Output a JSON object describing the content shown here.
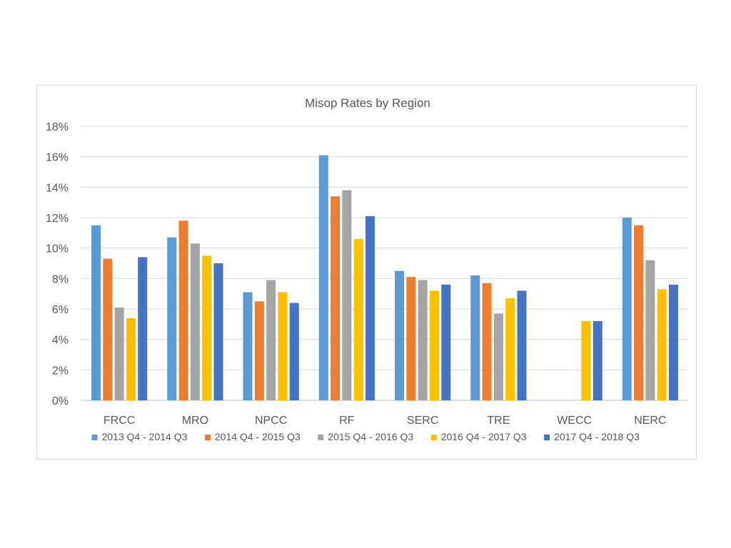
{
  "chart_data": {
    "type": "bar",
    "title": "Misop Rates by Region",
    "xlabel": "",
    "ylabel": "",
    "ylim": [
      0,
      18
    ],
    "y_ticks": [
      "0%",
      "2%",
      "4%",
      "6%",
      "8%",
      "10%",
      "12%",
      "14%",
      "16%",
      "18%"
    ],
    "grid": true,
    "legend_position": "bottom",
    "categories": [
      "FRCC",
      "MRO",
      "NPCC",
      "RF",
      "SERC",
      "TRE",
      "WECC",
      "NERC"
    ],
    "series": [
      {
        "name": "2013 Q4 - 2014 Q3",
        "color": "#5b9bd5",
        "values": [
          11.5,
          10.7,
          7.1,
          16.1,
          8.5,
          8.2,
          null,
          12.0
        ]
      },
      {
        "name": "2014 Q4 - 2015 Q3",
        "color": "#ed7d31",
        "values": [
          9.3,
          11.8,
          6.5,
          13.4,
          8.1,
          7.7,
          null,
          11.5
        ]
      },
      {
        "name": "2015 Q4 - 2016 Q3",
        "color": "#a5a5a5",
        "values": [
          6.1,
          10.3,
          7.9,
          13.8,
          7.9,
          5.7,
          null,
          9.2
        ]
      },
      {
        "name": "2016 Q4 - 2017 Q3",
        "color": "#ffc000",
        "values": [
          5.4,
          9.5,
          7.1,
          10.6,
          7.2,
          6.7,
          5.2,
          7.3
        ]
      },
      {
        "name": "2017 Q4 - 2018 Q3",
        "color": "#4472c4",
        "values": [
          9.4,
          9.0,
          6.4,
          12.1,
          7.6,
          7.2,
          5.2,
          7.6
        ]
      }
    ]
  }
}
